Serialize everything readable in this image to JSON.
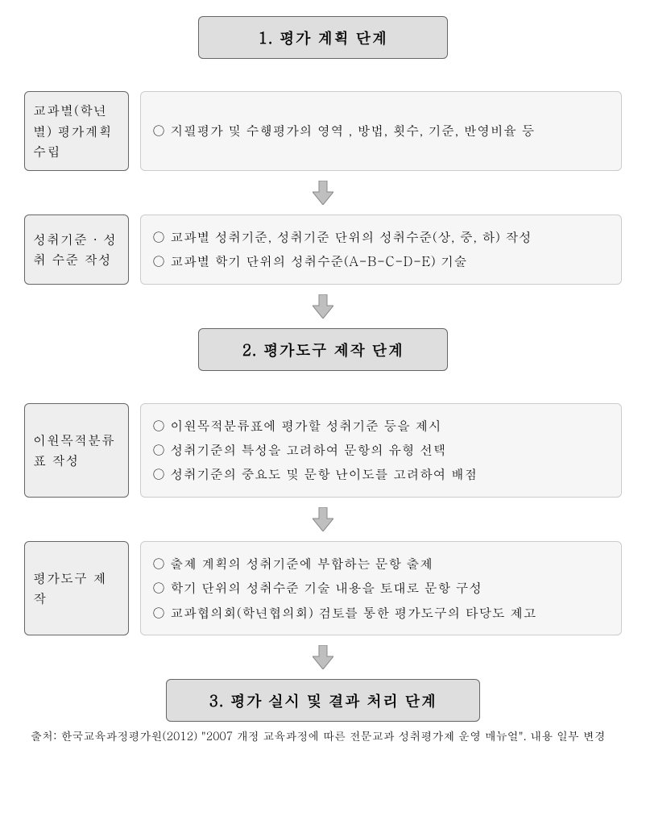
{
  "colors": {
    "stage_bg": "#dedede",
    "label_bg": "#eeeeee",
    "content_bg": "#f6f6f6",
    "content_border": "#cccccc",
    "arrow_fill": "#bfbfbf",
    "arrow_stroke": "#888888"
  },
  "layout": {
    "stage_width_narrow": 310,
    "stage_width_wide": 390,
    "gap_after_stage": 40,
    "gap_after_row": 10
  },
  "stage1": {
    "title": "1. 평가 계획 단계"
  },
  "row1": {
    "label": "교과별(학년별) 평가계획 수립",
    "lines": [
      "○ 지필평가 및 수행평가의 영역 , 방법, 횟수, 기준, 반영비율 등"
    ]
  },
  "row2": {
    "label": "성취기준 · 성취 수준 작성",
    "lines": [
      "○ 교과별 성취기준, 성취기준 단위의 성취수준(상, 중, 하) 작성",
      "○ 교과별 학기 단위의 성취수준(A-B-C-D-E) 기술"
    ]
  },
  "stage2": {
    "title": "2. 평가도구 제작 단계"
  },
  "row3": {
    "label": "이원목적분류표 작성",
    "lines": [
      "○ 이원목적분류표에 평가할 성취기준 등을 제시",
      "○ 성취기준의 특성을 고려하여 문항의 유형 선택",
      "○ 성취기준의 중요도 및 문항 난이도를 고려하여 배점"
    ]
  },
  "row4": {
    "label": "평가도구 제작",
    "lines": [
      "○ 출제 계획의 성취기준에 부합하는 문항 출제",
      "○ 학기 단위의 성취수준 기술 내용을 토대로 문항 구성",
      "○ 교과협의회(학년협의회) 검토를 통한 평가도구의 타당도 제고"
    ]
  },
  "stage3": {
    "title": "3. 평가 실시 및 결과 처리 단계"
  },
  "source": "출처: 한국교육과정평가원(2012) \"2007 개정 교육과정에 따른 전문교과 성취평가제 운영 매뉴얼\". 내용 일부 변경"
}
